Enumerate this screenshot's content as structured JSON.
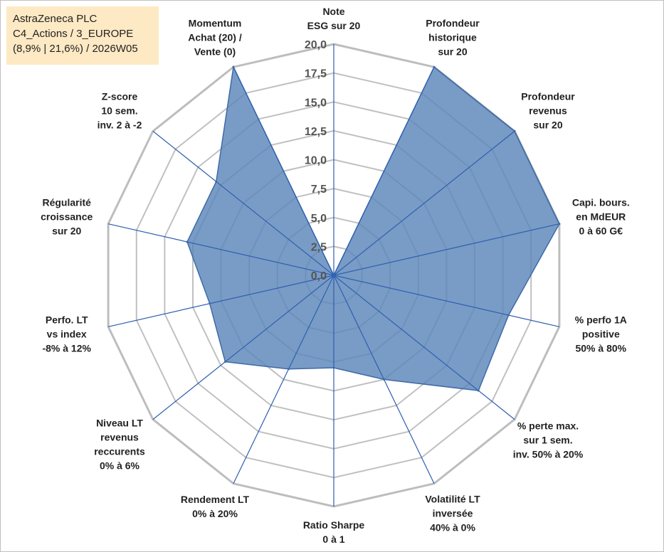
{
  "info_box": {
    "line1": "AstraZeneca PLC",
    "line2": "C4_Actions / 3_EUROPE",
    "line3": "(8,9% | 21,6%) / 2026W05"
  },
  "colors": {
    "fill": "#5b86b9",
    "stroke": "#3d6aa8",
    "spoke": "#2e5fb0",
    "grid": "#c0c0c0",
    "outer_grid": "#bdbdbd",
    "info_bg": "#fde9c4"
  },
  "chart_data": {
    "type": "radar",
    "title": "",
    "rmin": 0,
    "rmax": 20,
    "tick_step": 2.5,
    "tick_labels": [
      "0,0",
      "2,5",
      "5,0",
      "7,5",
      "10,0",
      "12,5",
      "15,0",
      "17,5",
      "20,0"
    ],
    "axes": [
      {
        "label": [
          "Note",
          "ESG sur 20"
        ],
        "value": 0
      },
      {
        "label": [
          "Profondeur",
          "historique",
          "sur 20"
        ],
        "value": 20
      },
      {
        "label": [
          "Profondeur",
          "revenus",
          "sur 20"
        ],
        "value": 20
      },
      {
        "label": [
          "Capi. bours.",
          "en MdEUR",
          "0 à 60 G€"
        ],
        "value": 20
      },
      {
        "label": [
          "% perfo 1A",
          "positive",
          "50% à 80%"
        ],
        "value": 15.5
      },
      {
        "label": [
          "% perte max.",
          "sur 1 sem.",
          "inv. 50% à 20%"
        ],
        "value": 16
      },
      {
        "label": [
          "Volatilité LT",
          "inversée",
          "40% à 0%"
        ],
        "value": 10
      },
      {
        "label": [
          "Ratio Sharpe",
          "0 à 1"
        ],
        "value": 8
      },
      {
        "label": [
          "Rendement LT",
          "0% à 20%"
        ],
        "value": 9
      },
      {
        "label": [
          "Niveau LT",
          "revenus",
          "reccurents",
          "0% à 6%"
        ],
        "value": 12
      },
      {
        "label": [
          "Perfo. LT",
          "vs index",
          "-8% à 12%"
        ],
        "value": 11
      },
      {
        "label": [
          "Régularité",
          "croissance",
          "sur 20"
        ],
        "value": 13
      },
      {
        "label": [
          "Z-score",
          "10 sem.",
          "inv. 2 à -2"
        ],
        "value": 13
      },
      {
        "label": [
          "Momentum",
          "Achat (20) /",
          "Vente (0)"
        ],
        "value": 20
      }
    ]
  }
}
